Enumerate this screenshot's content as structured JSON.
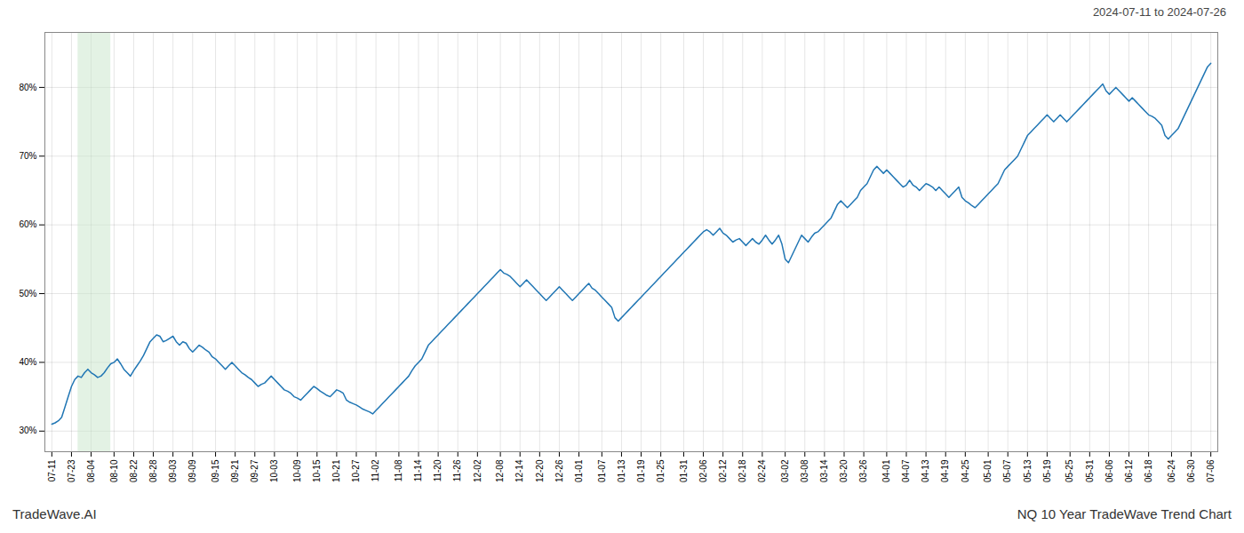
{
  "chart_data": {
    "type": "line",
    "color": "#2076b4",
    "grid": true,
    "annotations": [
      "2024-07-11 to 2024-07-26",
      "TradeWave.AI",
      "NQ 10 Year TradeWave Trend Chart"
    ],
    "shaded_span": {
      "from": 8,
      "to": 18,
      "color": "#c8e6c9"
    },
    "ylim": [
      27,
      88
    ],
    "yticks": [
      {
        "value": 30,
        "label": "30%"
      },
      {
        "value": 40,
        "label": "40%"
      },
      {
        "value": 50,
        "label": "50%"
      },
      {
        "value": 60,
        "label": "60%"
      },
      {
        "value": 70,
        "label": "70%"
      },
      {
        "value": 80,
        "label": "80%"
      }
    ],
    "categories": [
      "07-11",
      null,
      null,
      null,
      null,
      null,
      "07-23",
      null,
      null,
      null,
      null,
      null,
      "08-04",
      null,
      null,
      null,
      null,
      null,
      null,
      "08-10",
      null,
      null,
      null,
      null,
      null,
      "08-22",
      null,
      null,
      null,
      null,
      null,
      "08-28",
      null,
      null,
      null,
      null,
      null,
      "09-03",
      null,
      null,
      null,
      null,
      null,
      "09-09",
      null,
      null,
      null,
      null,
      null,
      null,
      "09-15",
      null,
      null,
      null,
      null,
      null,
      "09-21",
      null,
      null,
      null,
      null,
      null,
      "09-27",
      null,
      null,
      null,
      null,
      null,
      "10-03",
      null,
      null,
      null,
      null,
      null,
      null,
      "10-09",
      null,
      null,
      null,
      null,
      null,
      "10-15",
      null,
      null,
      null,
      null,
      null,
      "10-21",
      null,
      null,
      null,
      null,
      null,
      "10-27",
      null,
      null,
      null,
      null,
      null,
      "11-02",
      null,
      null,
      null,
      null,
      null,
      null,
      "11-08",
      null,
      null,
      null,
      null,
      null,
      "11-14",
      null,
      null,
      null,
      null,
      null,
      "11-20",
      null,
      null,
      null,
      null,
      null,
      "11-26",
      null,
      null,
      null,
      null,
      null,
      "12-02",
      null,
      null,
      null,
      null,
      null,
      null,
      "12-08",
      null,
      null,
      null,
      null,
      null,
      "12-14",
      null,
      null,
      null,
      null,
      null,
      "12-20",
      null,
      null,
      null,
      null,
      null,
      "12-26",
      null,
      null,
      null,
      null,
      null,
      "01-01",
      null,
      null,
      null,
      null,
      null,
      null,
      "01-07",
      null,
      null,
      null,
      null,
      null,
      "01-13",
      null,
      null,
      null,
      null,
      null,
      "01-19",
      null,
      null,
      null,
      null,
      null,
      "01-25",
      null,
      null,
      null,
      null,
      null,
      null,
      "01-31",
      null,
      null,
      null,
      null,
      null,
      "02-06",
      null,
      null,
      null,
      null,
      null,
      "02-12",
      null,
      null,
      null,
      null,
      null,
      "02-18",
      null,
      null,
      null,
      null,
      null,
      "02-24",
      null,
      null,
      null,
      null,
      null,
      null,
      "03-02",
      null,
      null,
      null,
      null,
      null,
      "03-08",
      null,
      null,
      null,
      null,
      null,
      "03-14",
      null,
      null,
      null,
      null,
      null,
      "03-20",
      null,
      null,
      null,
      null,
      null,
      "03-26",
      null,
      null,
      null,
      null,
      null,
      null,
      "04-01",
      null,
      null,
      null,
      null,
      null,
      "04-07",
      null,
      null,
      null,
      null,
      null,
      "04-13",
      null,
      null,
      null,
      null,
      null,
      "04-19",
      null,
      null,
      null,
      null,
      null,
      "04-25",
      null,
      null,
      null,
      null,
      null,
      null,
      "05-01",
      null,
      null,
      null,
      null,
      null,
      "05-07",
      null,
      null,
      null,
      null,
      null,
      "05-13",
      null,
      null,
      null,
      null,
      null,
      "05-19",
      null,
      null,
      null,
      null,
      null,
      null,
      "05-25",
      null,
      null,
      null,
      null,
      null,
      "05-31",
      null,
      null,
      null,
      null,
      null,
      "06-06",
      null,
      null,
      null,
      null,
      null,
      "06-12",
      null,
      null,
      null,
      null,
      null,
      "06-18",
      null,
      null,
      null,
      null,
      null,
      null,
      "06-24",
      null,
      null,
      null,
      null,
      null,
      "06-30",
      null,
      null,
      null,
      null,
      null,
      "07-06"
    ],
    "values": [
      31.0,
      31.2,
      31.5,
      32.0,
      33.5,
      35.0,
      36.5,
      37.5,
      38.0,
      37.8,
      38.5,
      39.0,
      38.5,
      38.2,
      37.8,
      38.0,
      38.5,
      39.2,
      39.8,
      40.0,
      40.5,
      39.8,
      39.0,
      38.5,
      38.0,
      38.8,
      39.5,
      40.2,
      41.0,
      42.0,
      43.0,
      43.5,
      44.0,
      43.8,
      43.0,
      43.2,
      43.5,
      43.8,
      43.0,
      42.5,
      43.0,
      42.8,
      42.0,
      41.5,
      42.0,
      42.5,
      42.2,
      41.8,
      41.5,
      40.8,
      40.5,
      40.0,
      39.5,
      39.0,
      39.5,
      40.0,
      39.5,
      39.0,
      38.5,
      38.2,
      37.8,
      37.5,
      37.0,
      36.5,
      36.8,
      37.0,
      37.5,
      38.0,
      37.5,
      37.0,
      36.5,
      36.0,
      35.8,
      35.5,
      35.0,
      34.8,
      34.5,
      35.0,
      35.5,
      36.0,
      36.5,
      36.2,
      35.8,
      35.5,
      35.2,
      35.0,
      35.5,
      36.0,
      35.8,
      35.5,
      34.5,
      34.2,
      34.0,
      33.8,
      33.5,
      33.2,
      33.0,
      32.8,
      32.5,
      33.0,
      33.5,
      34.0,
      34.5,
      35.0,
      35.5,
      36.0,
      36.5,
      37.0,
      37.5,
      38.0,
      38.8,
      39.5,
      40.0,
      40.5,
      41.5,
      42.5,
      43.0,
      43.5,
      44.0,
      44.5,
      45.0,
      45.5,
      46.0,
      46.5,
      47.0,
      47.5,
      48.0,
      48.5,
      49.0,
      49.5,
      50.0,
      50.5,
      51.0,
      51.5,
      52.0,
      52.5,
      53.0,
      53.5,
      53.0,
      52.8,
      52.5,
      52.0,
      51.5,
      51.0,
      51.5,
      52.0,
      51.5,
      51.0,
      50.5,
      50.0,
      49.5,
      49.0,
      49.5,
      50.0,
      50.5,
      51.0,
      50.5,
      50.0,
      49.5,
      49.0,
      49.5,
      50.0,
      50.5,
      51.0,
      51.5,
      50.8,
      50.5,
      50.0,
      49.5,
      49.0,
      48.5,
      48.0,
      46.5,
      46.0,
      46.5,
      47.0,
      47.5,
      48.0,
      48.5,
      49.0,
      49.5,
      50.0,
      50.5,
      51.0,
      51.5,
      52.0,
      52.5,
      53.0,
      53.5,
      54.0,
      54.5,
      55.0,
      55.5,
      56.0,
      56.5,
      57.0,
      57.5,
      58.0,
      58.5,
      59.0,
      59.3,
      59.0,
      58.5,
      59.0,
      59.5,
      58.8,
      58.5,
      58.0,
      57.5,
      57.8,
      58.0,
      57.5,
      57.0,
      57.5,
      58.0,
      57.5,
      57.2,
      57.8,
      58.5,
      57.8,
      57.2,
      57.8,
      58.5,
      57.2,
      55.0,
      54.5,
      55.5,
      56.5,
      57.5,
      58.5,
      58.0,
      57.5,
      58.2,
      58.8,
      59.0,
      59.5,
      60.0,
      60.5,
      61.0,
      62.0,
      63.0,
      63.5,
      63.0,
      62.5,
      63.0,
      63.5,
      64.0,
      65.0,
      65.5,
      66.0,
      67.0,
      68.0,
      68.5,
      68.0,
      67.5,
      68.0,
      67.5,
      67.0,
      66.5,
      66.0,
      65.5,
      65.8,
      66.5,
      65.8,
      65.5,
      65.0,
      65.5,
      66.0,
      65.8,
      65.5,
      65.0,
      65.5,
      65.0,
      64.5,
      64.0,
      64.5,
      65.0,
      65.5,
      64.0,
      63.5,
      63.2,
      62.8,
      62.5,
      63.0,
      63.5,
      64.0,
      64.5,
      65.0,
      65.5,
      66.0,
      67.0,
      68.0,
      68.5,
      69.0,
      69.5,
      70.0,
      71.0,
      72.0,
      73.0,
      73.5,
      74.0,
      74.5,
      75.0,
      75.5,
      76.0,
      75.5,
      75.0,
      75.5,
      76.0,
      75.5,
      75.0,
      75.5,
      76.0,
      76.5,
      77.0,
      77.5,
      78.0,
      78.5,
      79.0,
      79.5,
      80.0,
      80.5,
      79.5,
      79.0,
      79.5,
      80.0,
      79.5,
      79.0,
      78.5,
      78.0,
      78.5,
      78.0,
      77.5,
      77.0,
      76.5,
      76.0,
      75.8,
      75.5,
      75.0,
      74.5,
      73.0,
      72.5,
      73.0,
      73.5,
      74.0,
      75.0,
      76.0,
      77.0,
      78.0,
      79.0,
      80.0,
      81.0,
      82.0,
      83.0,
      83.5
    ]
  }
}
